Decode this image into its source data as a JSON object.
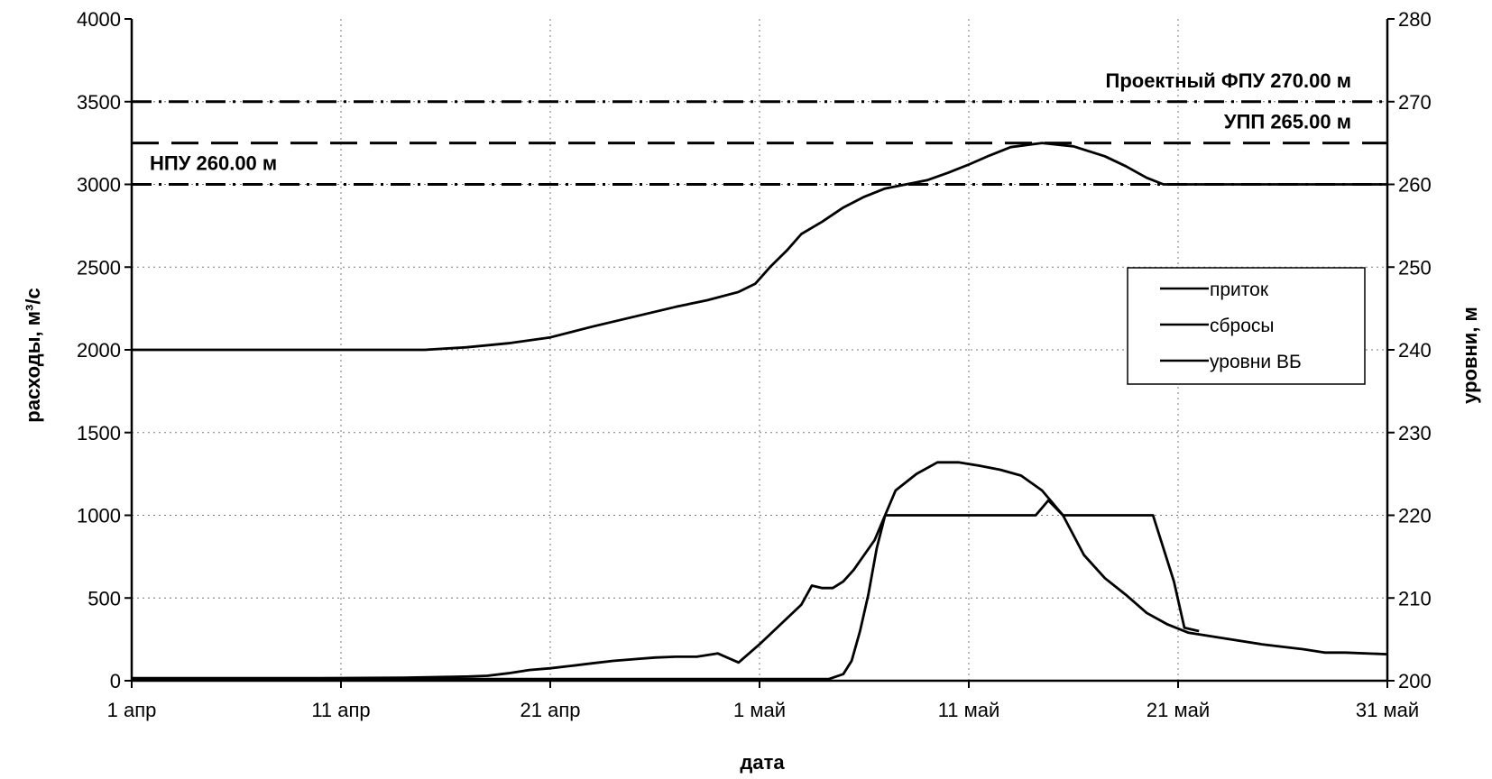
{
  "chart_data": {
    "type": "line",
    "xlabel": "дата",
    "ylabel_left": "расходы, м³/с",
    "ylabel_right": "уровни, м",
    "x_range": [
      1,
      61
    ],
    "y_left_range": [
      0,
      4000
    ],
    "y_right_range": [
      200,
      280
    ],
    "x_ticks": [
      {
        "day": 1,
        "label": "1 апр"
      },
      {
        "day": 11,
        "label": "11 апр"
      },
      {
        "day": 21,
        "label": "21 апр"
      },
      {
        "day": 31,
        "label": "1 май"
      },
      {
        "day": 41,
        "label": "11 май"
      },
      {
        "day": 51,
        "label": "21 май"
      },
      {
        "day": 61,
        "label": "31 май"
      }
    ],
    "y_left_ticks": [
      "0",
      "500",
      "1000",
      "1500",
      "2000",
      "2500",
      "3000",
      "3500",
      "4000"
    ],
    "y_right_ticks": [
      "200",
      "210",
      "220",
      "230",
      "240",
      "250",
      "260",
      "270",
      "280"
    ],
    "grid": "dotted",
    "reference_lines": [
      {
        "name": "ФПУ",
        "level": 270.0,
        "label": "Проектный ФПУ 270.00 м",
        "style": "dash-dot",
        "label_position": "right"
      },
      {
        "name": "УПП",
        "level": 265.0,
        "label": "УПП 265.00 м",
        "style": "dashed",
        "label_position": "right"
      },
      {
        "name": "НПУ",
        "level": 260.0,
        "label": "НПУ 260.00 м",
        "style": "dash-dot",
        "label_position": "left"
      }
    ],
    "legend": {
      "position": "right-middle",
      "entries": [
        "приток",
        "сбросы",
        "уровни ВБ"
      ]
    },
    "series": [
      {
        "name": "приток",
        "axis": "left",
        "points": [
          [
            1,
            15
          ],
          [
            10,
            15
          ],
          [
            14,
            18
          ],
          [
            17,
            25
          ],
          [
            18,
            30
          ],
          [
            19,
            45
          ],
          [
            20,
            65
          ],
          [
            21,
            75
          ],
          [
            22,
            90
          ],
          [
            23,
            105
          ],
          [
            24,
            120
          ],
          [
            25,
            130
          ],
          [
            26,
            140
          ],
          [
            27,
            145
          ],
          [
            28,
            145
          ],
          [
            29,
            165
          ],
          [
            30,
            110
          ],
          [
            31,
            220
          ],
          [
            32,
            340
          ],
          [
            33,
            460
          ],
          [
            33.5,
            575
          ],
          [
            34,
            560
          ],
          [
            34.5,
            560
          ],
          [
            35,
            600
          ],
          [
            35.5,
            670
          ],
          [
            36.5,
            850
          ],
          [
            37.5,
            1150
          ],
          [
            38.5,
            1250
          ],
          [
            39.5,
            1320
          ],
          [
            40.5,
            1320
          ],
          [
            41.5,
            1300
          ],
          [
            42.5,
            1275
          ],
          [
            43.5,
            1240
          ],
          [
            44.5,
            1150
          ],
          [
            45.5,
            1000
          ],
          [
            46.5,
            760
          ],
          [
            47.5,
            620
          ],
          [
            48.5,
            520
          ],
          [
            49.5,
            410
          ],
          [
            50.5,
            340
          ],
          [
            51.5,
            290
          ],
          [
            53,
            260
          ],
          [
            55,
            220
          ],
          [
            57,
            190
          ],
          [
            58,
            170
          ],
          [
            59,
            170
          ],
          [
            61,
            160
          ]
        ]
      },
      {
        "name": "сбросы",
        "axis": "left",
        "points": [
          [
            1,
            10
          ],
          [
            33,
            10
          ],
          [
            34.3,
            10
          ],
          [
            35,
            40
          ],
          [
            35.4,
            120
          ],
          [
            35.8,
            300
          ],
          [
            36.2,
            520
          ],
          [
            36.6,
            800
          ],
          [
            37,
            1000
          ],
          [
            39,
            1000
          ],
          [
            40,
            1000
          ],
          [
            43,
            1000
          ],
          [
            44.2,
            1000
          ],
          [
            44.8,
            1090
          ],
          [
            45.5,
            1000
          ],
          [
            49.8,
            1000
          ],
          [
            50.8,
            600
          ],
          [
            51.3,
            320
          ],
          [
            52,
            300
          ]
        ]
      },
      {
        "name": "уровни ВБ",
        "axis": "right",
        "points": [
          [
            1,
            240
          ],
          [
            15,
            240
          ],
          [
            17,
            240.3
          ],
          [
            19,
            240.8
          ],
          [
            21,
            241.5
          ],
          [
            23,
            242.8
          ],
          [
            25,
            244
          ],
          [
            27,
            245.2
          ],
          [
            28.5,
            246
          ],
          [
            30,
            247
          ],
          [
            30.8,
            248
          ],
          [
            31.5,
            250
          ],
          [
            32.3,
            252
          ],
          [
            33,
            254
          ],
          [
            34,
            255.5
          ],
          [
            35,
            257.2
          ],
          [
            36,
            258.5
          ],
          [
            37,
            259.5
          ],
          [
            38,
            260
          ],
          [
            39,
            260.5
          ],
          [
            40,
            261.4
          ],
          [
            41,
            262.4
          ],
          [
            42,
            263.5
          ],
          [
            43,
            264.5
          ],
          [
            44.5,
            265
          ],
          [
            46,
            264.6
          ],
          [
            47.5,
            263.4
          ],
          [
            48.5,
            262.2
          ],
          [
            49.5,
            260.8
          ],
          [
            50.3,
            260
          ],
          [
            51,
            260
          ],
          [
            61,
            260
          ]
        ]
      }
    ]
  }
}
